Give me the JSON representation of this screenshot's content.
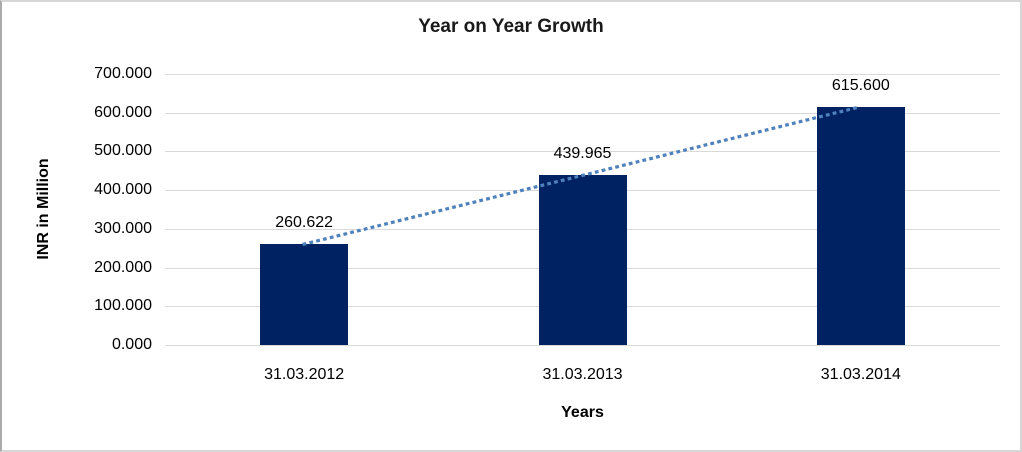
{
  "chart_data": {
    "type": "bar",
    "title": "Year on Year Growth",
    "categories": [
      "31.03.2012",
      "31.03.2013",
      "31.03.2014"
    ],
    "values": [
      260.622,
      439.965,
      615.6
    ],
    "value_labels": [
      "260.622",
      "439.965",
      "615.600"
    ],
    "xlabel": "Years",
    "ylabel": "INR in Million",
    "ylim": [
      0,
      700
    ],
    "ytick_step": 100,
    "ytick_labels": [
      "0.000",
      "100.000",
      "200.000",
      "300.000",
      "400.000",
      "500.000",
      "600.000",
      "700.000"
    ],
    "grid": true,
    "legend": "none",
    "colors": {
      "bar": "#002263",
      "trendline": "#4f81bd",
      "gridline": "#d9d9d9",
      "text": "#000000"
    },
    "trendline": {
      "style": "dotted",
      "from_category": "31.03.2012",
      "to_category": "31.03.2014"
    }
  }
}
